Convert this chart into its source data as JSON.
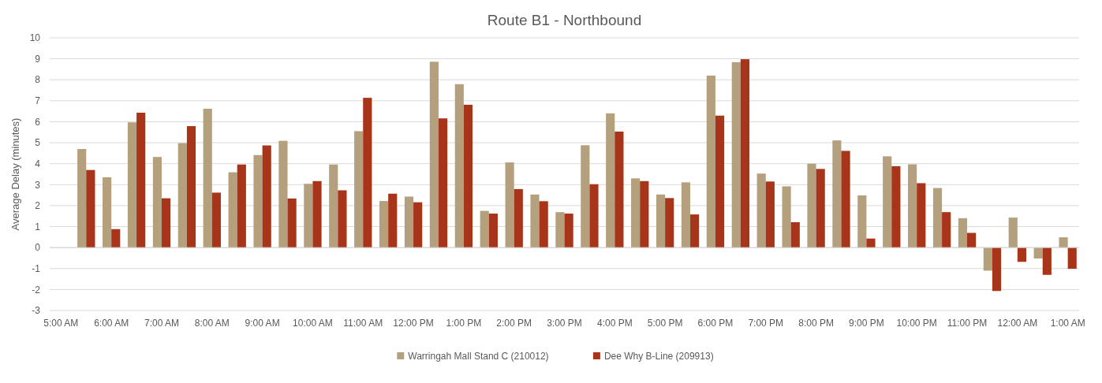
{
  "chart_data": {
    "type": "bar",
    "title": "Route B1 - Northbound",
    "ylabel": "Average Delay (minutes)",
    "categories": [
      "5:00 AM",
      null,
      "6:00 AM",
      null,
      "7:00 AM",
      null,
      "8:00 AM",
      null,
      "9:00 AM",
      null,
      "10:00 AM",
      null,
      "11:00 AM",
      null,
      "12:00 PM",
      null,
      "1:00 PM",
      null,
      "2:00 PM",
      null,
      "3:00 PM",
      null,
      "4:00 PM",
      null,
      "5:00 PM",
      null,
      "6:00 PM",
      null,
      "7:00 PM",
      null,
      "8:00 PM",
      null,
      "9:00 PM",
      null,
      "10:00 PM",
      null,
      "11:00 PM",
      null,
      "12:00 AM",
      null,
      "1:00 AM"
    ],
    "series": [
      {
        "name": "Warringah Mall Stand C (210012)",
        "color": "#b5a07e",
        "values": [
          null,
          4.7,
          3.35,
          5.97,
          4.32,
          4.98,
          6.62,
          3.59,
          4.41,
          5.09,
          3.04,
          3.96,
          5.55,
          2.22,
          2.43,
          8.86,
          7.79,
          1.75,
          4.06,
          2.53,
          1.69,
          4.88,
          6.4,
          3.3,
          2.53,
          3.11,
          8.2,
          8.84,
          3.53,
          2.92,
          4.0,
          5.11,
          2.49,
          4.35,
          3.97,
          2.84,
          1.4,
          -1.1,
          1.43,
          -0.52,
          0.49
        ]
      },
      {
        "name": "Dee Why B-Line (209913)",
        "color": "#a8341a",
        "values": [
          null,
          3.7,
          0.88,
          6.43,
          2.35,
          5.79,
          2.62,
          3.96,
          4.87,
          2.34,
          3.17,
          2.73,
          7.14,
          2.57,
          2.16,
          6.16,
          6.81,
          1.62,
          2.79,
          2.21,
          1.62,
          3.02,
          5.53,
          3.17,
          2.36,
          1.58,
          6.29,
          8.98,
          3.15,
          1.21,
          3.75,
          4.61,
          0.43,
          3.88,
          3.07,
          1.69,
          0.7,
          -2.07,
          -0.68,
          -1.3,
          -1.01
        ]
      }
    ],
    "ylim": [
      -3,
      10
    ],
    "yticks": [
      -3,
      -2,
      -1,
      0,
      1,
      2,
      3,
      4,
      5,
      6,
      7,
      8,
      9,
      10
    ],
    "grid": "y",
    "legend": "bottom"
  }
}
